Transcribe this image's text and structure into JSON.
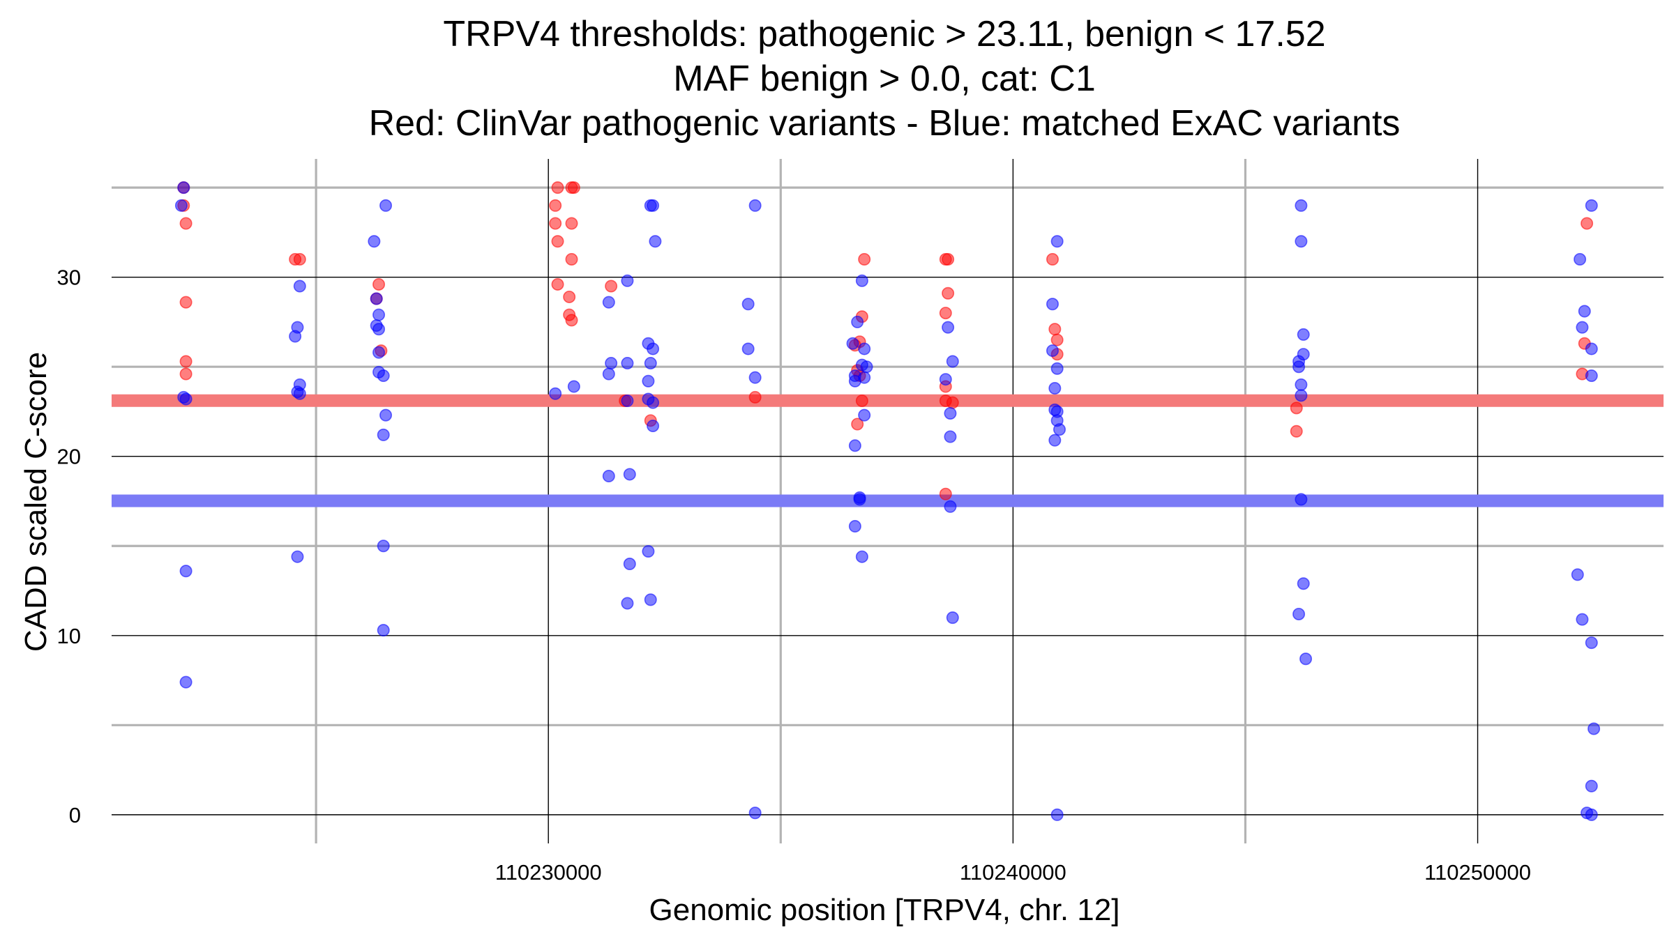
{
  "chart_data": {
    "type": "scatter",
    "title_lines": [
      "TRPV4 thresholds: pathogenic > 23.11, benign < 17.52",
      "MAF benign > 0.0, cat: C1",
      "Red: ClinVar pathogenic variants - Blue: matched ExAC variants"
    ],
    "xlabel": "Genomic position [TRPV4, chr. 12]",
    "ylabel": "CADD scaled C-score",
    "xlim": [
      110220600,
      110254000
    ],
    "ylim": [
      -1.6,
      36.6
    ],
    "x_ticks": [
      110230000,
      110240000,
      110250000
    ],
    "x_tick_labels": [
      "110230000",
      "110240000",
      "110250000"
    ],
    "x_minor_ticks": [
      110225000,
      110235000,
      110245000
    ],
    "y_ticks": [
      0,
      10,
      20,
      30
    ],
    "y_tick_labels": [
      "0",
      "10",
      "20",
      "30"
    ],
    "y_minor_ticks": [
      5,
      15,
      25,
      35
    ],
    "grid": true,
    "thresholds": [
      {
        "name": "pathogenic threshold",
        "value": 23.11,
        "color": "#f47a7a"
      },
      {
        "name": "benign threshold",
        "value": 17.52,
        "color": "#7b7bf6"
      }
    ],
    "series": [
      {
        "name": "ClinVar pathogenic variants",
        "color": "#ff0000",
        "points": [
          [
            110222150,
            35.0
          ],
          [
            110222150,
            34.0
          ],
          [
            110222200,
            33.0
          ],
          [
            110222200,
            28.6
          ],
          [
            110222200,
            25.3
          ],
          [
            110222200,
            24.6
          ],
          [
            110224550,
            31.0
          ],
          [
            110224650,
            31.0
          ],
          [
            110226350,
            29.6
          ],
          [
            110226300,
            28.8
          ],
          [
            110226400,
            25.9
          ],
          [
            110230200,
            35.0
          ],
          [
            110230150,
            34.0
          ],
          [
            110230150,
            33.0
          ],
          [
            110230200,
            32.0
          ],
          [
            110230200,
            29.6
          ],
          [
            110230500,
            35.0
          ],
          [
            110230550,
            35.0
          ],
          [
            110230500,
            33.0
          ],
          [
            110230500,
            31.0
          ],
          [
            110230450,
            28.9
          ],
          [
            110230450,
            27.9
          ],
          [
            110230500,
            27.6
          ],
          [
            110231350,
            29.5
          ],
          [
            110231650,
            23.1
          ],
          [
            110232200,
            22.0
          ],
          [
            110234450,
            23.3
          ],
          [
            110236600,
            26.2
          ],
          [
            110236700,
            26.4
          ],
          [
            110236650,
            24.8
          ],
          [
            110236700,
            24.5
          ],
          [
            110236750,
            27.8
          ],
          [
            110236800,
            31.0
          ],
          [
            110236650,
            21.8
          ],
          [
            110236750,
            23.1
          ],
          [
            110238550,
            31.0
          ],
          [
            110238600,
            31.0
          ],
          [
            110238600,
            29.1
          ],
          [
            110238550,
            28.0
          ],
          [
            110238550,
            23.9
          ],
          [
            110238550,
            23.1
          ],
          [
            110238700,
            23.0
          ],
          [
            110238550,
            17.9
          ],
          [
            110240850,
            31.0
          ],
          [
            110240900,
            27.1
          ],
          [
            110240950,
            26.5
          ],
          [
            110240950,
            25.7
          ],
          [
            110246100,
            22.7
          ],
          [
            110246100,
            21.4
          ],
          [
            110252350,
            33.0
          ],
          [
            110252300,
            26.3
          ],
          [
            110252250,
            24.6
          ]
        ]
      },
      {
        "name": "matched ExAC variants",
        "color": "#0000ff",
        "points": [
          [
            110222150,
            35.0
          ],
          [
            110222100,
            34.0
          ],
          [
            110222150,
            23.3
          ],
          [
            110222200,
            23.2
          ],
          [
            110222200,
            13.6
          ],
          [
            110222200,
            7.4
          ],
          [
            110224650,
            29.5
          ],
          [
            110224600,
            27.2
          ],
          [
            110224550,
            26.7
          ],
          [
            110224650,
            24.0
          ],
          [
            110224600,
            23.6
          ],
          [
            110224650,
            23.5
          ],
          [
            110224600,
            14.4
          ],
          [
            110226500,
            34.0
          ],
          [
            110226250,
            32.0
          ],
          [
            110226300,
            28.8
          ],
          [
            110226350,
            27.9
          ],
          [
            110226300,
            27.3
          ],
          [
            110226350,
            27.1
          ],
          [
            110226350,
            25.8
          ],
          [
            110226350,
            24.7
          ],
          [
            110226450,
            24.5
          ],
          [
            110226500,
            22.3
          ],
          [
            110226450,
            21.2
          ],
          [
            110226450,
            15.0
          ],
          [
            110226450,
            10.3
          ],
          [
            110230150,
            23.5
          ],
          [
            110230550,
            23.9
          ],
          [
            110231300,
            28.6
          ],
          [
            110231350,
            25.2
          ],
          [
            110231300,
            24.6
          ],
          [
            110231700,
            29.8
          ],
          [
            110231700,
            25.2
          ],
          [
            110231700,
            23.1
          ],
          [
            110231300,
            18.9
          ],
          [
            110231750,
            19.0
          ],
          [
            110231750,
            14.0
          ],
          [
            110231700,
            11.8
          ],
          [
            110232200,
            34.0
          ],
          [
            110232250,
            34.0
          ],
          [
            110232300,
            32.0
          ],
          [
            110232150,
            26.3
          ],
          [
            110232250,
            26.0
          ],
          [
            110232200,
            25.2
          ],
          [
            110232150,
            24.2
          ],
          [
            110232150,
            23.2
          ],
          [
            110232250,
            23.0
          ],
          [
            110232250,
            21.7
          ],
          [
            110232150,
            14.7
          ],
          [
            110232200,
            12.0
          ],
          [
            110234450,
            34.0
          ],
          [
            110234300,
            28.5
          ],
          [
            110234300,
            26.0
          ],
          [
            110234450,
            24.4
          ],
          [
            110234450,
            0.1
          ],
          [
            110236650,
            27.5
          ],
          [
            110236750,
            29.8
          ],
          [
            110236550,
            26.3
          ],
          [
            110236800,
            26.0
          ],
          [
            110236750,
            25.1
          ],
          [
            110236850,
            25.0
          ],
          [
            110236600,
            24.5
          ],
          [
            110236600,
            24.2
          ],
          [
            110236800,
            24.4
          ],
          [
            110236800,
            22.3
          ],
          [
            110236600,
            20.6
          ],
          [
            110236700,
            17.7
          ],
          [
            110236700,
            17.6
          ],
          [
            110236600,
            16.1
          ],
          [
            110236750,
            14.4
          ],
          [
            110238600,
            27.2
          ],
          [
            110238700,
            25.3
          ],
          [
            110238550,
            24.3
          ],
          [
            110238650,
            22.4
          ],
          [
            110238650,
            21.1
          ],
          [
            110238650,
            17.2
          ],
          [
            110238700,
            11.0
          ],
          [
            110240950,
            32.0
          ],
          [
            110240850,
            28.5
          ],
          [
            110240850,
            25.9
          ],
          [
            110240950,
            24.9
          ],
          [
            110240900,
            23.8
          ],
          [
            110240900,
            22.6
          ],
          [
            110240950,
            22.5
          ],
          [
            110240950,
            22.0
          ],
          [
            110241000,
            21.5
          ],
          [
            110240900,
            20.9
          ],
          [
            110240950,
            0.0
          ],
          [
            110246200,
            34.0
          ],
          [
            110246200,
            32.0
          ],
          [
            110246250,
            26.8
          ],
          [
            110246250,
            25.7
          ],
          [
            110246150,
            25.3
          ],
          [
            110246150,
            25.0
          ],
          [
            110246200,
            24.0
          ],
          [
            110246200,
            23.4
          ],
          [
            110246200,
            17.6
          ],
          [
            110246250,
            12.9
          ],
          [
            110246150,
            11.2
          ],
          [
            110246300,
            8.7
          ],
          [
            110252450,
            34.0
          ],
          [
            110252200,
            31.0
          ],
          [
            110252300,
            28.1
          ],
          [
            110252250,
            27.2
          ],
          [
            110252450,
            26.0
          ],
          [
            110252450,
            24.5
          ],
          [
            110252150,
            13.4
          ],
          [
            110252250,
            10.9
          ],
          [
            110252450,
            9.6
          ],
          [
            110252500,
            4.8
          ],
          [
            110252450,
            1.6
          ],
          [
            110252350,
            0.1
          ],
          [
            110252450,
            0.0
          ]
        ]
      }
    ]
  }
}
